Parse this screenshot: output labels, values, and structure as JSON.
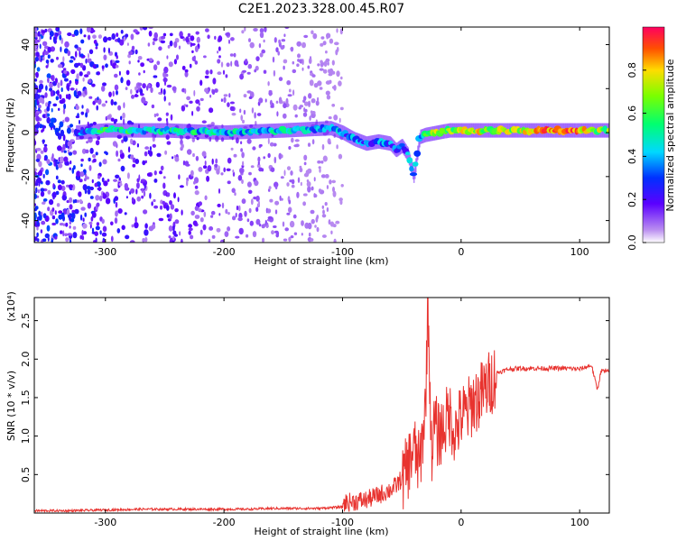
{
  "figure": {
    "title": "C2E1.2023.328.00.45.R07"
  },
  "chart_data": [
    {
      "type": "heatmap",
      "title": "C2E1.2023.328.00.45.R07",
      "xlabel": "Height of straight line (km)",
      "ylabel": "Frequency (Hz)",
      "xlim": [
        -360,
        125
      ],
      "ylim": [
        -50,
        48
      ],
      "x_ticks": [
        -300,
        -200,
        -100,
        0,
        100
      ],
      "y_ticks": [
        -40,
        -20,
        0,
        20,
        40
      ],
      "x_tick_labels": [
        "-300",
        "-200",
        "-100",
        "0",
        "100"
      ],
      "y_tick_labels": [
        "-40",
        "-20",
        "0",
        "20",
        "40"
      ],
      "grid": false,
      "colorscale": "rainbow (purple-blue-cyan-green-yellow-red)",
      "colorbar": {
        "label": "Normalized spectral amplitude",
        "range": [
          0,
          1
        ],
        "ticks": [
          0.0,
          0.2,
          0.4,
          0.6,
          0.8
        ],
        "tick_labels": [
          "0.0",
          "0.2",
          "0.4",
          "0.6",
          "0.8"
        ]
      },
      "ridge": {
        "description": "frequency of maximum spectral amplitude vs height",
        "x": [
          -325,
          -300,
          -250,
          -200,
          -150,
          -110,
          -100,
          -90,
          -80,
          -70,
          -60,
          -55,
          -50,
          -45,
          -40,
          -35,
          -30,
          -20,
          -10,
          0,
          20,
          50,
          80,
          100,
          125
        ],
        "y": [
          0,
          1,
          1,
          0,
          1,
          2,
          0,
          -3,
          -5,
          -4,
          -5,
          -8,
          -6,
          -10,
          -20,
          -2,
          -1,
          0,
          1,
          1,
          1,
          1,
          1,
          1,
          1
        ],
        "amplitude": [
          0.3,
          0.5,
          0.45,
          0.45,
          0.4,
          0.35,
          0.3,
          0.3,
          0.3,
          0.3,
          0.3,
          0.3,
          0.3,
          0.3,
          0.3,
          0.45,
          0.5,
          0.8,
          0.6,
          0.85,
          0.7,
          0.7,
          0.9,
          0.8,
          0.6
        ]
      },
      "noise_region": {
        "x": [
          -360,
          -100
        ],
        "ymin": -50,
        "ymax": 48
      }
    },
    {
      "type": "line",
      "xlabel": "Height of straight line (km)",
      "ylabel": "SNR (10 * v/v)",
      "y_scale_label": "(x10⁴)",
      "xlim": [
        -360,
        125
      ],
      "ylim": [
        0,
        2.8
      ],
      "x_ticks": [
        -300,
        -200,
        -100,
        0,
        100
      ],
      "y_ticks": [
        0.5,
        1.0,
        1.5,
        2.0,
        2.5
      ],
      "x_tick_labels": [
        "-300",
        "-200",
        "-100",
        "0",
        "100"
      ],
      "y_tick_labels": [
        "0.5",
        "1.0",
        "1.5",
        "2.0",
        "2.5"
      ],
      "grid": false,
      "series": [
        {
          "color": "#e8332f",
          "x": [
            -360,
            -330,
            -300,
            -270,
            -250,
            -220,
            -200,
            -180,
            -160,
            -140,
            -120,
            -110,
            -100,
            -90,
            -80,
            -70,
            -60,
            -55,
            -50,
            -45,
            -40,
            -35,
            -30,
            -28,
            -25,
            -22,
            -20,
            -15,
            -10,
            -5,
            0,
            5,
            10,
            15,
            20,
            25,
            30,
            40,
            50,
            60,
            70,
            80,
            90,
            100,
            110,
            115,
            118,
            125
          ],
          "y": [
            0.03,
            0.03,
            0.04,
            0.05,
            0.05,
            0.05,
            0.05,
            0.05,
            0.06,
            0.06,
            0.06,
            0.07,
            0.08,
            0.1,
            0.12,
            0.18,
            0.25,
            0.3,
            0.4,
            0.6,
            0.85,
            0.6,
            1.4,
            2.8,
            0.8,
            1.2,
            1.0,
            1.1,
            1.3,
            1.05,
            1.25,
            1.3,
            1.45,
            1.5,
            1.6,
            1.7,
            1.82,
            1.87,
            1.88,
            1.88,
            1.88,
            1.88,
            1.88,
            1.87,
            1.92,
            1.6,
            1.85,
            1.83
          ]
        }
      ]
    }
  ]
}
